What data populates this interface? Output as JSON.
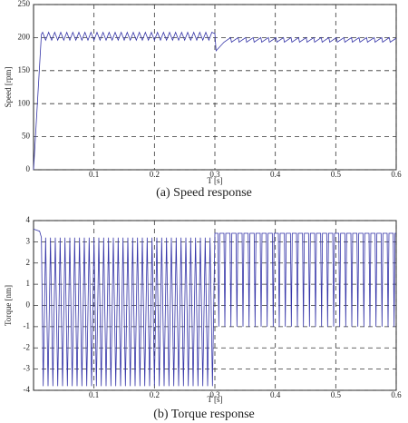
{
  "chart_data": [
    {
      "type": "line",
      "caption": "(a)  Speed  response",
      "xlabel": "T [s]",
      "ylabel": "Speed [rpm]",
      "color": "#3535a8",
      "xlim": [
        0,
        0.6
      ],
      "ylim": [
        0,
        250
      ],
      "xticks": [
        0.1,
        0.2,
        0.3,
        0.4,
        0.5,
        0.6
      ],
      "yticks": [
        0,
        50,
        100,
        150,
        200,
        250
      ],
      "grid": true,
      "x": [
        0,
        0.013,
        0.015,
        0.02,
        0.025,
        0.03,
        0.035,
        0.04,
        0.045,
        0.05,
        0.055,
        0.06,
        0.065,
        0.07,
        0.075,
        0.08,
        0.085,
        0.09,
        0.095,
        0.1,
        0.105,
        0.11,
        0.115,
        0.12,
        0.125,
        0.13,
        0.135,
        0.14,
        0.145,
        0.15,
        0.155,
        0.16,
        0.165,
        0.17,
        0.175,
        0.18,
        0.185,
        0.19,
        0.195,
        0.2,
        0.205,
        0.21,
        0.215,
        0.22,
        0.225,
        0.23,
        0.235,
        0.24,
        0.245,
        0.25,
        0.255,
        0.26,
        0.265,
        0.27,
        0.275,
        0.28,
        0.285,
        0.29,
        0.295,
        0.3,
        0.302,
        0.315,
        0.326,
        0.3275,
        0.3385,
        0.34,
        0.351,
        0.3525,
        0.3635,
        0.365,
        0.376,
        0.3775,
        0.3885,
        0.39,
        0.401,
        0.4025,
        0.4135,
        0.415,
        0.426,
        0.4275,
        0.4385,
        0.44,
        0.451,
        0.4525,
        0.4635,
        0.465,
        0.476,
        0.4775,
        0.4885,
        0.49,
        0.501,
        0.5025,
        0.5135,
        0.515,
        0.526,
        0.5275,
        0.5385,
        0.54,
        0.551,
        0.5525,
        0.5635,
        0.565,
        0.576,
        0.5775,
        0.5885,
        0.59,
        0.6
      ],
      "values": [
        0,
        205,
        208,
        196,
        208,
        196,
        208,
        196,
        208,
        196,
        208,
        196,
        208,
        196,
        208,
        196,
        208,
        196,
        208,
        196,
        208,
        196,
        208,
        196,
        208,
        196,
        208,
        196,
        208,
        196,
        208,
        196,
        208,
        196,
        208,
        196,
        208,
        196,
        208,
        196,
        208,
        196,
        208,
        196,
        208,
        196,
        208,
        196,
        208,
        196,
        208,
        196,
        208,
        196,
        208,
        196,
        208,
        196,
        208,
        206,
        180,
        193,
        200,
        193,
        200,
        193,
        200,
        193,
        200,
        193,
        200,
        193,
        200,
        193,
        200,
        193,
        200,
        193,
        200,
        193,
        200,
        193,
        200,
        193,
        200,
        193,
        200,
        193,
        200,
        193,
        200,
        193,
        200,
        193,
        200,
        193,
        200,
        193,
        200,
        193,
        200,
        193,
        200,
        193,
        200,
        193,
        199
      ]
    },
    {
      "type": "line",
      "caption": "(b)  Torque  response",
      "xlabel": "T [s]",
      "ylabel": "Torque [nm]",
      "color": "#3535a8",
      "xlim": [
        0,
        0.6
      ],
      "ylim": [
        -4,
        4
      ],
      "xticks": [
        0.1,
        0.2,
        0.3,
        0.4,
        0.5,
        0.6
      ],
      "yticks": [
        -4,
        -3,
        -2,
        -1,
        0,
        1,
        2,
        3,
        4
      ],
      "grid": true,
      "x": [
        0,
        0.01,
        0.013,
        0.016,
        0.02,
        0.024,
        0.028,
        0.032,
        0.036,
        0.04,
        0.044,
        0.048,
        0.052,
        0.056,
        0.06,
        0.064,
        0.068,
        0.072,
        0.076,
        0.08,
        0.084,
        0.088,
        0.092,
        0.096,
        0.1,
        0.104,
        0.108,
        0.112,
        0.116,
        0.12,
        0.124,
        0.128,
        0.132,
        0.136,
        0.14,
        0.144,
        0.148,
        0.152,
        0.156,
        0.16,
        0.164,
        0.168,
        0.172,
        0.176,
        0.18,
        0.184,
        0.188,
        0.192,
        0.196,
        0.2,
        0.204,
        0.208,
        0.212,
        0.216,
        0.22,
        0.224,
        0.228,
        0.232,
        0.236,
        0.24,
        0.244,
        0.248,
        0.252,
        0.256,
        0.26,
        0.264,
        0.268,
        0.272,
        0.276,
        0.28,
        0.284,
        0.288,
        0.292,
        0.296,
        0.3,
        0.305,
        0.3065,
        0.308,
        0.315,
        0.3165,
        0.318,
        0.325,
        0.3265,
        0.328,
        0.335,
        0.3365,
        0.338,
        0.345,
        0.3465,
        0.348,
        0.355,
        0.3565,
        0.358,
        0.365,
        0.3665,
        0.368,
        0.375,
        0.3765,
        0.378,
        0.385,
        0.3865,
        0.388,
        0.395,
        0.3965,
        0.398,
        0.405,
        0.4065,
        0.408,
        0.415,
        0.4165,
        0.418,
        0.425,
        0.4265,
        0.428,
        0.435,
        0.4365,
        0.438,
        0.445,
        0.4465,
        0.448,
        0.455,
        0.4565,
        0.458,
        0.465,
        0.4665,
        0.468,
        0.475,
        0.4765,
        0.478,
        0.485,
        0.4865,
        0.488,
        0.495,
        0.4965,
        0.498,
        0.505,
        0.5065,
        0.508,
        0.515,
        0.5165,
        0.518,
        0.525,
        0.5265,
        0.528,
        0.535,
        0.5365,
        0.538,
        0.545,
        0.5465,
        0.548,
        0.555,
        0.5565,
        0.558,
        0.565,
        0.5665,
        0.568,
        0.575,
        0.5765,
        0.578,
        0.585,
        0.5865,
        0.588,
        0.595,
        0.5965,
        0.598,
        0.6
      ],
      "values": [
        3.6,
        3.5,
        3.2,
        -3.8,
        3.2,
        -3.8,
        3.2,
        -3.8,
        3.2,
        -3.8,
        3.2,
        -3.8,
        3.2,
        -3.8,
        3.2,
        -3.8,
        3.2,
        -3.8,
        3.2,
        -3.8,
        3.2,
        -3.8,
        3.2,
        -3.8,
        3.2,
        -3.8,
        3.2,
        -3.8,
        3.2,
        -3.8,
        3.2,
        -3.8,
        3.2,
        -3.8,
        3.2,
        -3.8,
        3.2,
        -3.8,
        3.2,
        -3.8,
        3.2,
        -3.8,
        3.2,
        -3.8,
        3.2,
        -3.8,
        3.2,
        -3.8,
        3.2,
        -3.8,
        3.2,
        -3.8,
        3.2,
        -3.8,
        3.2,
        -3.8,
        3.2,
        -3.8,
        3.2,
        -3.8,
        3.2,
        -3.8,
        3.2,
        -3.8,
        3.2,
        -3.8,
        3.2,
        -3.8,
        3.2,
        -3.8,
        3.2,
        -3.8,
        3.2,
        -3.8,
        3.4,
        3.4,
        -1,
        3.4,
        3.4,
        -1,
        3.4,
        3.4,
        -1,
        3.4,
        3.4,
        -1,
        3.4,
        3.4,
        -1,
        3.4,
        3.4,
        -1,
        3.4,
        3.4,
        -1,
        3.4,
        3.4,
        -1,
        3.4,
        3.4,
        -1,
        3.4,
        3.4,
        -1,
        3.4,
        3.4,
        -1,
        3.4,
        3.4,
        -1,
        3.4,
        3.4,
        -1,
        3.4,
        3.4,
        -1,
        3.4,
        3.4,
        -1,
        3.4,
        3.4,
        -1,
        3.4,
        3.4,
        -1,
        3.4,
        3.4,
        -1,
        3.4,
        3.4,
        -1,
        3.4,
        3.4,
        -1,
        3.4,
        3.4,
        -1,
        3.4,
        3.4,
        -1,
        3.4,
        3.4,
        -1,
        3.4,
        3.4,
        -1,
        3.4,
        3.4,
        -1,
        3.4,
        3.4,
        -1,
        3.4,
        3.4,
        -1,
        3.4,
        3.4,
        -1,
        3.4,
        3.4,
        -1,
        3.4,
        3.4,
        -1,
        3.4,
        3.4
      ]
    }
  ]
}
